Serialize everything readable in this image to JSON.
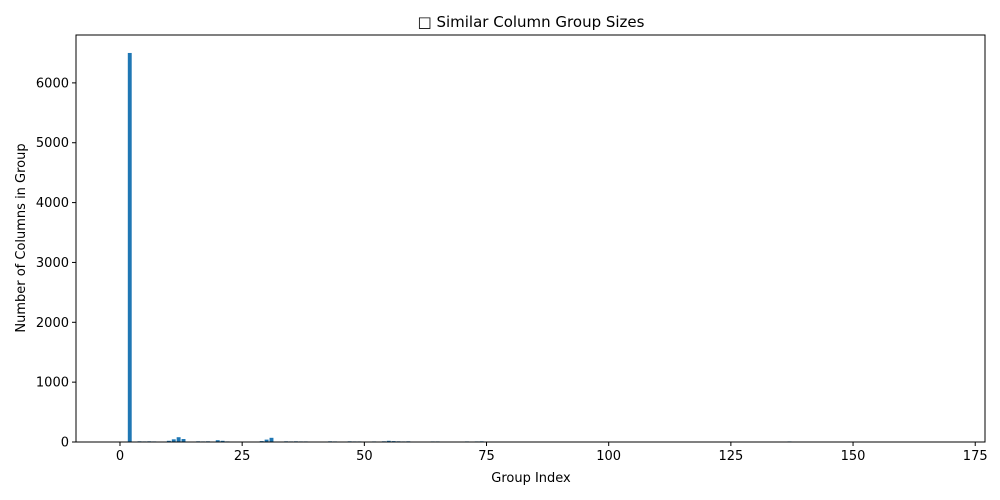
{
  "chart_data": {
    "type": "bar",
    "title": "□ Similar Column Group Sizes",
    "xlabel": "Group Index",
    "ylabel": "Number of Columns in Group",
    "xlim": [
      -9,
      177
    ],
    "ylim": [
      0,
      6800
    ],
    "xticks": [
      0,
      25,
      50,
      75,
      100,
      125,
      150,
      175
    ],
    "yticks": [
      0,
      1000,
      2000,
      3000,
      4000,
      5000,
      6000
    ],
    "grid": false,
    "bar_color": "#1f77b4",
    "x": [
      2,
      4,
      5,
      6,
      7,
      8,
      10,
      11,
      12,
      13,
      16,
      17,
      18,
      20,
      21,
      22,
      27,
      29,
      30,
      31,
      34,
      35,
      36,
      37,
      38,
      39,
      43,
      44,
      47,
      48,
      49,
      52,
      53,
      54,
      55,
      56,
      57,
      58,
      59,
      60,
      64,
      65,
      71,
      72,
      73,
      74,
      75,
      81,
      85,
      87,
      93,
      98,
      99,
      107,
      114,
      125,
      135,
      137,
      143,
      148
    ],
    "values": [
      6500,
      12,
      10,
      12,
      10,
      8,
      20,
      45,
      80,
      50,
      12,
      10,
      12,
      30,
      20,
      10,
      8,
      15,
      40,
      70,
      12,
      10,
      12,
      10,
      10,
      8,
      12,
      10,
      12,
      10,
      10,
      10,
      8,
      12,
      20,
      15,
      12,
      10,
      12,
      8,
      10,
      10,
      10,
      8,
      10,
      12,
      8,
      8,
      8,
      8,
      8,
      8,
      8,
      8,
      8,
      6,
      8,
      10,
      8,
      8
    ]
  }
}
